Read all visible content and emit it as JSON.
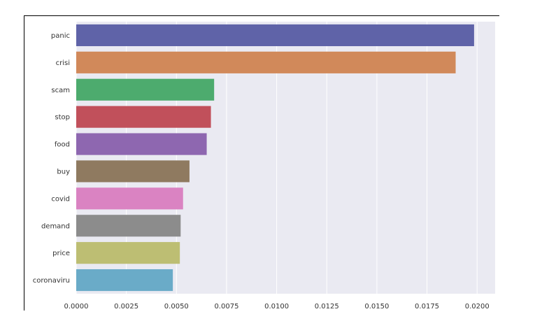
{
  "chart_data": {
    "type": "bar",
    "orientation": "horizontal",
    "categories": [
      "panic",
      "crisi",
      "scam",
      "stop",
      "food",
      "buy",
      "covid",
      "demand",
      "price",
      "coronaviru"
    ],
    "values": [
      0.01985,
      0.01893,
      0.00688,
      0.00672,
      0.00651,
      0.00565,
      0.00533,
      0.00521,
      0.00517,
      0.00482
    ],
    "colors": [
      "#5f63a8",
      "#d1895a",
      "#4dab6e",
      "#c1505b",
      "#8e67b0",
      "#8f7a60",
      "#da83c2",
      "#8c8c8c",
      "#bdbe73",
      "#6aabc8"
    ],
    "xticks": [
      "0.0000",
      "0.0025",
      "0.0050",
      "0.0075",
      "0.0100",
      "0.0125",
      "0.0150",
      "0.0175",
      "0.0200"
    ],
    "xlim": [
      0,
      0.0209
    ],
    "title": "",
    "xlabel": "",
    "ylabel": "",
    "grid": true,
    "background": "#eaeaf2"
  }
}
